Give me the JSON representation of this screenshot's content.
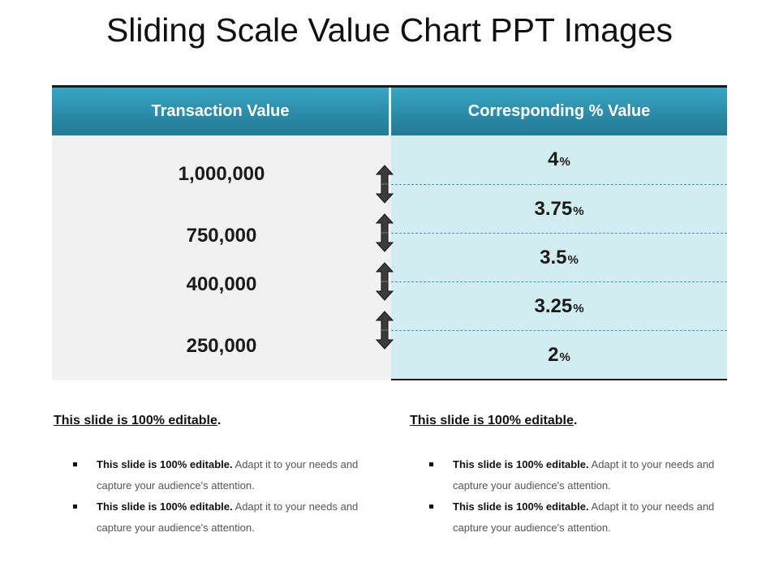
{
  "title": "Sliding Scale Value Chart PPT Images",
  "table": {
    "headers": [
      "Transaction Value",
      "Corresponding % Value"
    ],
    "transaction_values": [
      "1,000,000",
      "750,000",
      "400,000",
      "250,000"
    ],
    "percent_values": [
      "4",
      "3.75",
      "3.5",
      "3.25",
      "2"
    ],
    "percent_suffix": "%"
  },
  "columns": [
    {
      "heading_underlined": "This slide is 100% editable",
      "heading_tail": ".",
      "bullets": [
        {
          "bold": "This slide is 100% editable.",
          "text": " Adapt it to your needs and capture your audience's attention."
        },
        {
          "bold": "This slide is 100% editable.",
          "text": " Adapt it to your needs and capture your audience's attention."
        }
      ]
    },
    {
      "heading_underlined": "This slide is 100% editable",
      "heading_tail": ".",
      "bullets": [
        {
          "bold": "This slide is 100% editable.",
          "text": " Adapt it to your needs and capture your audience's attention."
        },
        {
          "bold": "This slide is 100% editable.",
          "text": " Adapt it to your needs and capture your audience's attention."
        }
      ]
    }
  ],
  "icons": {
    "range_arrow": "double-vertical-arrow-icon"
  },
  "colors": {
    "header": "#2a8aa6",
    "percent_bg": "#d2edf2",
    "value_bg": "#f1f1f1"
  }
}
